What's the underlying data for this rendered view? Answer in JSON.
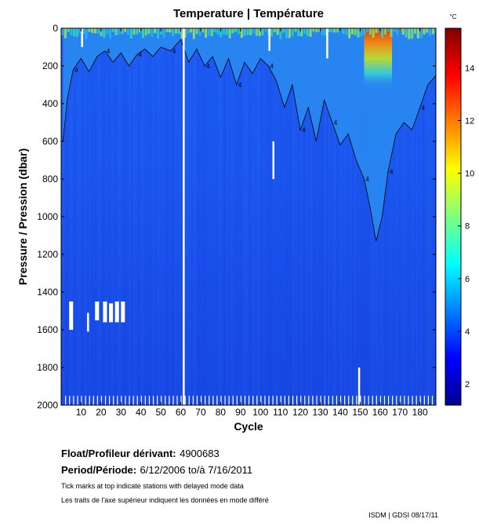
{
  "chart_data": {
    "type": "heatmap",
    "title": "Temperature | Température",
    "xlabel": "Cycle",
    "ylabel": "Pressure / Pression (dbar)",
    "colorbar_unit": "°C",
    "xlim": [
      0,
      188
    ],
    "ylim": [
      0,
      2000
    ],
    "x_ticks": [
      10,
      20,
      30,
      40,
      50,
      60,
      70,
      80,
      90,
      100,
      110,
      120,
      130,
      140,
      150,
      160,
      170,
      180
    ],
    "y_ticks": [
      0,
      200,
      400,
      600,
      800,
      1000,
      1200,
      1400,
      1600,
      1800,
      2000
    ],
    "colorbar_range": [
      1.2,
      15.5
    ],
    "colorbar_ticks": [
      2,
      4,
      6,
      8,
      10,
      12,
      14
    ],
    "contour_label": "4",
    "isotherm_4C_depth": [
      {
        "cycle": 1,
        "pressure": 600
      },
      {
        "cycle": 3,
        "pressure": 380
      },
      {
        "cycle": 6,
        "pressure": 220
      },
      {
        "cycle": 10,
        "pressure": 160
      },
      {
        "cycle": 14,
        "pressure": 230
      },
      {
        "cycle": 18,
        "pressure": 150
      },
      {
        "cycle": 22,
        "pressure": 120
      },
      {
        "cycle": 26,
        "pressure": 180
      },
      {
        "cycle": 30,
        "pressure": 130
      },
      {
        "cycle": 34,
        "pressure": 200
      },
      {
        "cycle": 38,
        "pressure": 140
      },
      {
        "cycle": 42,
        "pressure": 110
      },
      {
        "cycle": 46,
        "pressure": 150
      },
      {
        "cycle": 50,
        "pressure": 100
      },
      {
        "cycle": 55,
        "pressure": 120
      },
      {
        "cycle": 60,
        "pressure": 60
      },
      {
        "cycle": 64,
        "pressure": 180
      },
      {
        "cycle": 68,
        "pressure": 110
      },
      {
        "cycle": 72,
        "pressure": 200
      },
      {
        "cycle": 76,
        "pressure": 150
      },
      {
        "cycle": 80,
        "pressure": 260
      },
      {
        "cycle": 84,
        "pressure": 160
      },
      {
        "cycle": 88,
        "pressure": 300
      },
      {
        "cycle": 92,
        "pressure": 180
      },
      {
        "cycle": 96,
        "pressure": 240
      },
      {
        "cycle": 100,
        "pressure": 160
      },
      {
        "cycle": 104,
        "pressure": 200
      },
      {
        "cycle": 108,
        "pressure": 280
      },
      {
        "cycle": 112,
        "pressure": 420
      },
      {
        "cycle": 116,
        "pressure": 300
      },
      {
        "cycle": 120,
        "pressure": 540
      },
      {
        "cycle": 124,
        "pressure": 420
      },
      {
        "cycle": 128,
        "pressure": 600
      },
      {
        "cycle": 132,
        "pressure": 380
      },
      {
        "cycle": 136,
        "pressure": 500
      },
      {
        "cycle": 140,
        "pressure": 620
      },
      {
        "cycle": 144,
        "pressure": 560
      },
      {
        "cycle": 148,
        "pressure": 700
      },
      {
        "cycle": 152,
        "pressure": 800
      },
      {
        "cycle": 155,
        "pressure": 950
      },
      {
        "cycle": 158,
        "pressure": 1130
      },
      {
        "cycle": 161,
        "pressure": 1000
      },
      {
        "cycle": 164,
        "pressure": 760
      },
      {
        "cycle": 168,
        "pressure": 560
      },
      {
        "cycle": 172,
        "pressure": 500
      },
      {
        "cycle": 176,
        "pressure": 540
      },
      {
        "cycle": 180,
        "pressure": 420
      },
      {
        "cycle": 184,
        "pressure": 300
      },
      {
        "cycle": 188,
        "pressure": 250
      }
    ],
    "warm_core": {
      "cycle_start": 152,
      "cycle_end": 166,
      "max_temperature": 15,
      "max_depth": 320
    },
    "missing_profiles": [
      {
        "cycle": 61,
        "p_start": 0,
        "p_end": 2000
      },
      {
        "cycle": 104,
        "p_start": 0,
        "p_end": 120
      },
      {
        "cycle": 106,
        "p_start": 600,
        "p_end": 800
      },
      {
        "cycle": 133,
        "p_start": 0,
        "p_end": 160
      },
      {
        "cycle": 149,
        "p_start": 1800,
        "p_end": 2000
      },
      {
        "cycle": 10,
        "p_start": 0,
        "p_end": 100
      },
      {
        "cycle": 13,
        "p_start": 1510,
        "p_end": 1610
      }
    ],
    "missing_deep_segments": [
      {
        "cycle_start": 4,
        "cycle_end": 6,
        "p_start": 1450,
        "p_end": 1600
      },
      {
        "cycle_start": 17,
        "cycle_end": 19,
        "p_start": 1450,
        "p_end": 1550
      },
      {
        "cycle_start": 21,
        "cycle_end": 23,
        "p_start": 1450,
        "p_end": 1560
      },
      {
        "cycle_start": 24,
        "cycle_end": 26,
        "p_start": 1460,
        "p_end": 1560
      },
      {
        "cycle_start": 27,
        "cycle_end": 29,
        "p_start": 1450,
        "p_end": 1560
      },
      {
        "cycle_start": 30,
        "cycle_end": 32,
        "p_start": 1450,
        "p_end": 1560
      }
    ],
    "bottom_gaps_range": [
      2,
      186
    ],
    "bottom_gaps_band": [
      1950,
      2000
    ]
  },
  "footer": {
    "float_label": "Float/Profileur dérivant:",
    "float_value": "4900683",
    "period_label": "Period/Période:",
    "period_value": "6/12/2006  to/à  7/16/2011",
    "note_en": "Tick marks at top indicate stations with delayed mode data",
    "note_fr": "Les traits de l'axe supérieur indiquent les données en mode différé",
    "credit": "ISDM | GDSI  08/17/11"
  }
}
